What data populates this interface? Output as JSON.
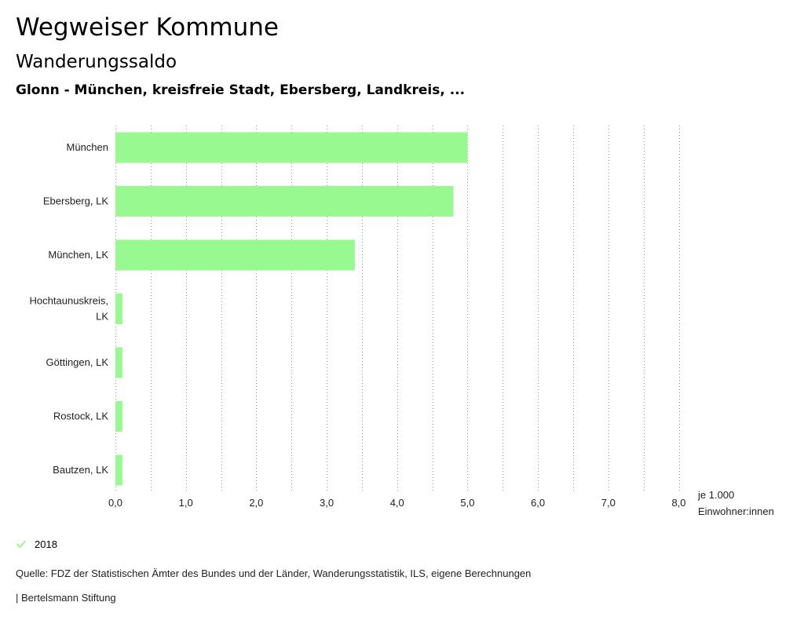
{
  "header": {
    "title": "Wegweiser Kommune",
    "subtitle": "Wanderungssaldo",
    "region": "Glonn - München, kreisfreie Stadt, Ebersberg, Landkreis, ..."
  },
  "chart_data": {
    "type": "bar",
    "orientation": "horizontal",
    "categories": [
      [
        "München"
      ],
      [
        "Ebersberg, LK"
      ],
      [
        "München, LK"
      ],
      [
        "Hochtaunuskreis,",
        "LK"
      ],
      [
        "Göttingen, LK"
      ],
      [
        "Rostock, LK"
      ],
      [
        "Bautzen, LK"
      ]
    ],
    "series": [
      {
        "name": "2018",
        "color": "#99f991",
        "values": [
          5.0,
          4.8,
          3.4,
          0.1,
          0.1,
          0.1,
          0.1
        ]
      }
    ],
    "xlim": [
      0,
      8
    ],
    "xticks": [
      0,
      1,
      2,
      3,
      4,
      5,
      6,
      7,
      8
    ],
    "xtick_labels": [
      "0,0",
      "1,0",
      "2,0",
      "3,0",
      "4,0",
      "5,0",
      "6,0",
      "7,0",
      "8,0"
    ],
    "xlabel": [
      "je 1.000",
      "Einwohner:innen"
    ],
    "grid": "vertical dotted"
  },
  "legend": {
    "label": "2018",
    "color": "#99f991"
  },
  "footer": {
    "source": "Quelle: FDZ der Statistischen Ämter des Bundes und der Länder, Wanderungsstatistik, ILS, eigene Berechnungen",
    "credit": "| Bertelsmann Stiftung"
  }
}
